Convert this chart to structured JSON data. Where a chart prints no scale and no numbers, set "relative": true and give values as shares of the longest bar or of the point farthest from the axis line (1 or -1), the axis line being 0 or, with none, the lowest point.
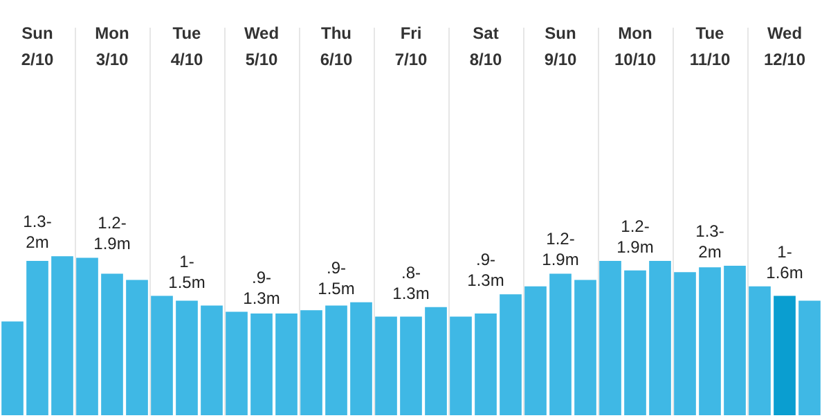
{
  "chart_data": {
    "type": "bar",
    "relative": true,
    "grid": "x",
    "categories": [
      null,
      "Sun 2/10",
      null,
      null,
      "Mon 3/10",
      null,
      null,
      "Tue 4/10",
      null,
      null,
      "Wed 5/10",
      null,
      null,
      "Thu 6/10",
      null,
      null,
      "Fri 7/10",
      null,
      null,
      "Sat 8/10",
      null,
      null,
      "Sun 9/10",
      null,
      null,
      "Mon 10/10",
      null,
      null,
      "Tue 11/10",
      null,
      null,
      "Wed 12/10",
      null
    ],
    "values": [
      0.59,
      0.97,
      1,
      0.99,
      0.89,
      0.85,
      0.75,
      0.72,
      0.69,
      0.65,
      0.64,
      0.64,
      0.66,
      0.69,
      0.71,
      0.62,
      0.62,
      0.68,
      0.62,
      0.64,
      0.76,
      0.81,
      0.89,
      0.85,
      0.97,
      0.91,
      0.97,
      0.9,
      0.93,
      0.94,
      0.81,
      0.75,
      0.72
    ],
    "colors": [
      "#3fb8e5",
      "#3fb8e5",
      "#3fb8e5",
      "#3fb8e5",
      "#3fb8e5",
      "#3fb8e5",
      "#3fb8e5",
      "#3fb8e5",
      "#3fb8e5",
      "#3fb8e5",
      "#3fb8e5",
      "#3fb8e5",
      "#3fb8e5",
      "#3fb8e5",
      "#3fb8e5",
      "#3fb8e5",
      "#3fb8e5",
      "#3fb8e5",
      "#3fb8e5",
      "#3fb8e5",
      "#3fb8e5",
      "#3fb8e5",
      "#3fb8e5",
      "#3fb8e5",
      "#3fb8e5",
      "#3fb8e5",
      "#3fb8e5",
      "#3fb8e5",
      "#3fb8e5",
      "#3fb8e5",
      "#3fb8e5",
      "#0a9ed0",
      "#3fb8e5"
    ],
    "annotations": [
      "1.3-2m",
      "1.2-1.9m",
      "1-1.5m",
      ".9-1.3m",
      ".9-1.5m",
      ".8-1.3m",
      ".9-1.3m",
      "1.2-1.9m",
      "1.2-1.9m",
      "1.3-2m",
      "1-1.6m"
    ]
  }
}
